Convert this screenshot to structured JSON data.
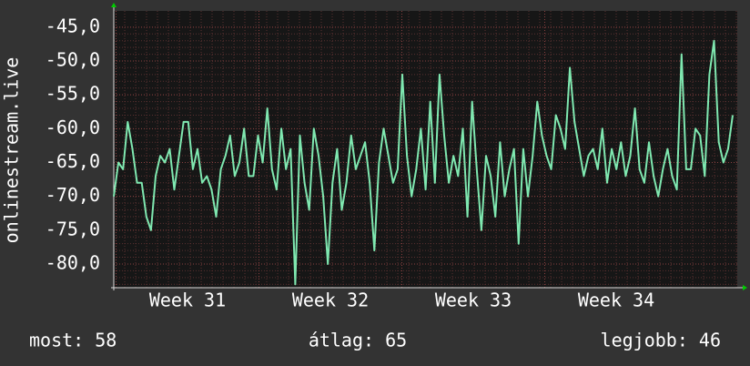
{
  "chart_data": {
    "type": "line",
    "y_label": "onlinestream.live",
    "color": "#7fe8b0",
    "grid": true,
    "ylim": [
      -83.5,
      -42.6
    ],
    "yticks": [
      {
        "value": -45,
        "label": "-45,0"
      },
      {
        "value": -50,
        "label": "-50,0"
      },
      {
        "value": -55,
        "label": "-55,0"
      },
      {
        "value": -60,
        "label": "-60,0"
      },
      {
        "value": -65,
        "label": "-65,0"
      },
      {
        "value": -70,
        "label": "-70,0"
      },
      {
        "value": -75,
        "label": "-75,0"
      },
      {
        "value": -80,
        "label": "-80,0"
      }
    ],
    "xticks": [
      "Week 31",
      "Week 32",
      "Week 33",
      "Week 34"
    ],
    "values": [
      -70,
      -65,
      -66,
      -59,
      -63,
      -68,
      -68,
      -73,
      -75,
      -67,
      -64,
      -65,
      -63,
      -69,
      -64,
      -59,
      -59,
      -66,
      -63,
      -68,
      -67,
      -69,
      -73,
      -66,
      -64,
      -61,
      -67,
      -65,
      -60,
      -67,
      -67,
      -61,
      -65,
      -57,
      -66,
      -69,
      -60,
      -66,
      -63,
      -83,
      -61,
      -68,
      -72,
      -60,
      -64,
      -70,
      -80,
      -68,
      -63,
      -72,
      -68,
      -61,
      -66,
      -64,
      -62,
      -68,
      -78,
      -65,
      -60,
      -64,
      -68,
      -66,
      -52,
      -64,
      -70,
      -66,
      -60,
      -69,
      -56,
      -68,
      -52,
      -61,
      -68,
      -64,
      -67,
      -60,
      -73,
      -56,
      -66,
      -75,
      -64,
      -67,
      -73,
      -62,
      -70,
      -66,
      -63,
      -77,
      -63,
      -70,
      -64,
      -56,
      -61,
      -64,
      -66,
      -58,
      -60,
      -63,
      -51,
      -59,
      -63,
      -67,
      -64,
      -63,
      -66,
      -60,
      -68,
      -63,
      -66,
      -62,
      -67,
      -64,
      -57,
      -66,
      -68,
      -62,
      -67,
      -70,
      -66,
      -63,
      -67,
      -69,
      -49,
      -66,
      -66,
      -60,
      -61,
      -67,
      -52,
      -47,
      -62,
      -65,
      -63,
      -58
    ],
    "footer": [
      "most: 58",
      "átlag: 65",
      "legjobb: 46"
    ]
  }
}
